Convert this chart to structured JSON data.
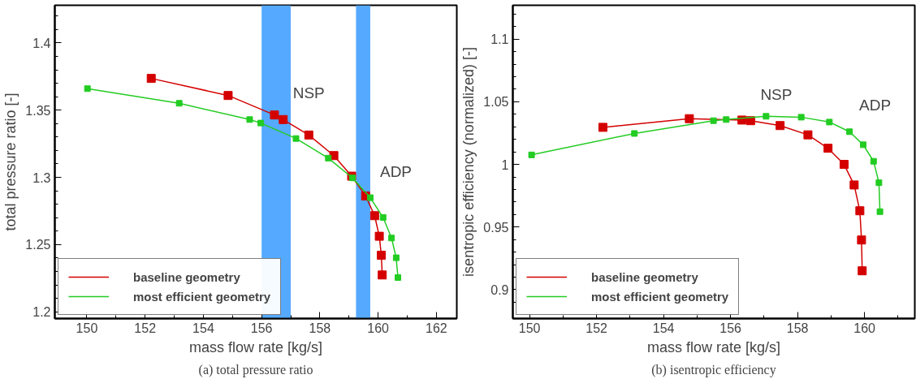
{
  "chart_data": [
    {
      "type": "line",
      "xlabel": "mass flow rate [kg/s]",
      "ylabel": "total pressure ratio [-]",
      "marker": "square",
      "grid": false,
      "legend": "bottom left",
      "xlim": [
        148.9,
        162.7
      ],
      "ylim": [
        1.195,
        1.428
      ],
      "xticks": [
        150,
        {
          "value": 151,
          "label": null
        },
        152,
        {
          "value": 153,
          "label": null
        },
        154,
        {
          "value": 155,
          "label": null
        },
        156,
        {
          "value": 157,
          "label": null
        },
        158,
        {
          "value": 159,
          "label": null
        },
        160,
        {
          "value": 161,
          "label": null
        },
        162
      ],
      "yticks": [
        1.2,
        {
          "value": 1.21,
          "label": null
        },
        {
          "value": 1.22,
          "label": null
        },
        {
          "value": 1.23,
          "label": null
        },
        {
          "value": 1.24,
          "label": null
        },
        1.25,
        {
          "value": 1.26,
          "label": null
        },
        {
          "value": 1.27,
          "label": null
        },
        {
          "value": 1.28,
          "label": null
        },
        {
          "value": 1.29,
          "label": null
        },
        1.3,
        {
          "value": 1.31,
          "label": null
        },
        {
          "value": 1.32,
          "label": null
        },
        {
          "value": 1.33,
          "label": null
        },
        {
          "value": 1.34,
          "label": null
        },
        1.35,
        {
          "value": 1.36,
          "label": null
        },
        {
          "value": 1.37,
          "label": null
        },
        {
          "value": 1.38,
          "label": null
        },
        {
          "value": 1.39,
          "label": null
        },
        1.4,
        {
          "value": 1.41,
          "label": null
        },
        {
          "value": 1.42,
          "label": null
        }
      ],
      "bands": [
        {
          "axis": "x",
          "from": 156.0,
          "to": 157.0,
          "color": "#55aaff"
        },
        {
          "axis": "x",
          "from": 159.24,
          "to": 159.73,
          "color": "#55aaff"
        }
      ],
      "series": [
        {
          "name": "baseline geometry",
          "color": "#d40000",
          "x": [
            152.21,
            154.85,
            156.44,
            156.74,
            157.62,
            158.48,
            159.09,
            159.57,
            159.88,
            160.04,
            160.11,
            160.14
          ],
          "values": [
            1.3736,
            1.3609,
            1.3464,
            1.343,
            1.3315,
            1.3162,
            1.3009,
            1.2862,
            1.2715,
            1.2562,
            1.2421,
            1.2274
          ]
        },
        {
          "name": "most efficient geometry",
          "color": "#22cc22",
          "x": [
            150.02,
            153.17,
            155.59,
            155.97,
            157.18,
            158.29,
            159.12,
            159.73,
            160.17,
            160.46,
            160.62,
            160.68
          ],
          "values": [
            1.366,
            1.3551,
            1.343,
            1.3404,
            1.3289,
            1.3143,
            1.2996,
            1.2849,
            1.2702,
            1.2549,
            1.2402,
            1.2255
          ]
        }
      ],
      "annotations": [
        {
          "text": "NSP",
          "x": 156.74,
          "y": 1.343
        },
        {
          "text": "ADP",
          "x": 159.73,
          "y": 1.2849
        },
        "(a) total pressure ratio"
      ]
    },
    {
      "type": "line",
      "xlabel": "mass flow rate [kg/s]",
      "ylabel": "isentropic efficiency (normalized) [-]",
      "marker": "square",
      "grid": false,
      "legend": "bottom left",
      "xlim": [
        149.5,
        161.5
      ],
      "ylim": [
        0.877,
        1.127
      ],
      "xticks": [
        150,
        {
          "value": 151,
          "label": null
        },
        152,
        {
          "value": 153,
          "label": null
        },
        154,
        {
          "value": 155,
          "label": null
        },
        156,
        {
          "value": 157,
          "label": null
        },
        158,
        {
          "value": 159,
          "label": null
        },
        160,
        {
          "value": 161,
          "label": null
        }
      ],
      "yticks": [
        {
          "value": 0.89,
          "label": null
        },
        0.9,
        {
          "value": 0.91,
          "label": null
        },
        {
          "value": 0.92,
          "label": null
        },
        {
          "value": 0.93,
          "label": null
        },
        {
          "value": 0.94,
          "label": null
        },
        0.95,
        {
          "value": 0.96,
          "label": null
        },
        {
          "value": 0.97,
          "label": null
        },
        {
          "value": 0.98,
          "label": null
        },
        {
          "value": 0.99,
          "label": null
        },
        1,
        {
          "value": 1.01,
          "label": null
        },
        {
          "value": 1.02,
          "label": null
        },
        {
          "value": 1.03,
          "label": null
        },
        {
          "value": 1.04,
          "label": null
        },
        1.05,
        {
          "value": 1.06,
          "label": null
        },
        {
          "value": 1.07,
          "label": null
        },
        {
          "value": 1.08,
          "label": null
        },
        {
          "value": 1.09,
          "label": null
        },
        1.1,
        {
          "value": 1.11,
          "label": null
        },
        {
          "value": 1.12,
          "label": null
        }
      ],
      "series": [
        {
          "name": "baseline geometry",
          "color": "#d40000",
          "x": [
            152.19,
            154.77,
            156.34,
            156.6,
            157.48,
            158.31,
            158.91,
            159.39,
            159.69,
            159.86,
            159.91,
            159.93
          ],
          "values": [
            1.0296,
            1.0365,
            1.0354,
            1.0349,
            1.031,
            1.0236,
            1.0129,
            1.0,
            0.9836,
            0.963,
            0.9397,
            0.9151
          ]
        },
        {
          "name": "most efficient geometry",
          "color": "#22cc22",
          "x": [
            150.06,
            153.13,
            155.49,
            155.87,
            157.06,
            158.11,
            158.95,
            159.55,
            159.96,
            160.27,
            160.43,
            160.46
          ],
          "values": [
            1.0076,
            1.0247,
            1.0349,
            1.0358,
            1.0384,
            1.0377,
            1.0338,
            1.0261,
            1.0157,
            1.0025,
            0.9854,
            0.9623
          ]
        }
      ],
      "annotations": [
        {
          "text": "NSP",
          "x": 156.6,
          "y": 1.0349
        },
        {
          "text": "ADP",
          "x": 159.55,
          "y": 1.0261
        },
        "(b) isentropic efficiency"
      ]
    }
  ]
}
